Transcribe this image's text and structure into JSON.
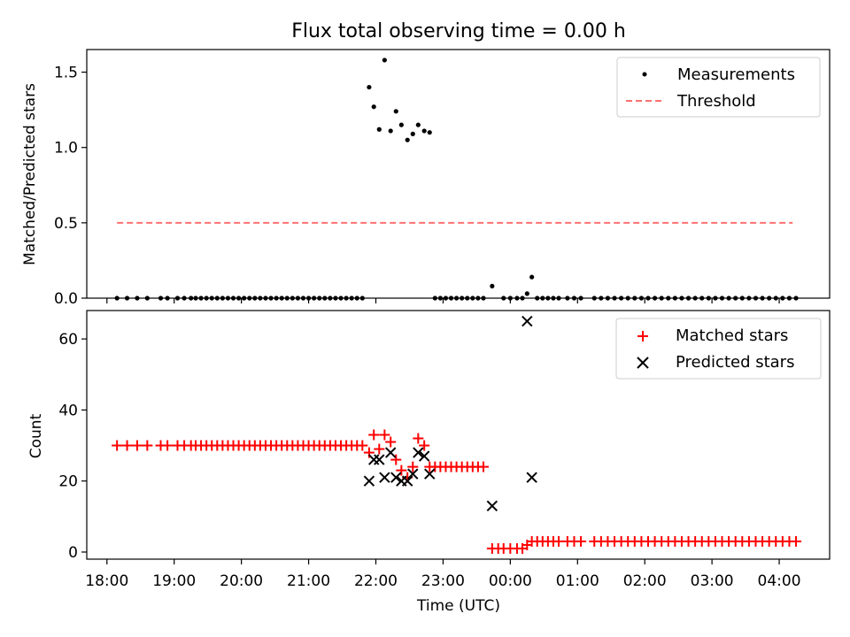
{
  "chart_data": [
    {
      "type": "scatter",
      "title": "Flux total observing time = 0.00 h",
      "ylabel": "Matched/Predicted stars",
      "xlabel": "",
      "ylim": [
        0,
        1.65
      ],
      "xlim_hours": [
        17.7,
        28.75
      ],
      "y_ticks": [
        0.0,
        0.5,
        1.0,
        1.5
      ],
      "y_tick_labels": [
        "0.0",
        "0.5",
        "1.0",
        "1.5"
      ],
      "legend_position": "top-right",
      "series": [
        {
          "name": "Measurements",
          "marker": "dot",
          "color": "#000000",
          "points": [
            [
              18.15,
              0
            ],
            [
              18.3,
              0
            ],
            [
              18.45,
              0
            ],
            [
              18.6,
              0
            ],
            [
              18.8,
              0
            ],
            [
              18.9,
              0
            ],
            [
              19.05,
              0
            ],
            [
              19.15,
              0
            ],
            [
              19.25,
              0
            ],
            [
              19.32,
              0
            ],
            [
              19.4,
              0
            ],
            [
              19.48,
              0
            ],
            [
              19.56,
              0
            ],
            [
              19.64,
              0
            ],
            [
              19.72,
              0
            ],
            [
              19.8,
              0
            ],
            [
              19.88,
              0
            ],
            [
              19.96,
              0
            ],
            [
              20.04,
              0
            ],
            [
              20.12,
              0
            ],
            [
              20.2,
              0
            ],
            [
              20.28,
              0
            ],
            [
              20.36,
              0
            ],
            [
              20.44,
              0
            ],
            [
              20.52,
              0
            ],
            [
              20.6,
              0
            ],
            [
              20.68,
              0
            ],
            [
              20.76,
              0
            ],
            [
              20.84,
              0
            ],
            [
              20.92,
              0
            ],
            [
              21.0,
              0
            ],
            [
              21.08,
              0
            ],
            [
              21.16,
              0
            ],
            [
              21.24,
              0
            ],
            [
              21.32,
              0
            ],
            [
              21.4,
              0
            ],
            [
              21.48,
              0
            ],
            [
              21.56,
              0
            ],
            [
              21.64,
              0
            ],
            [
              21.72,
              0
            ],
            [
              21.8,
              0
            ],
            [
              21.9,
              1.4
            ],
            [
              21.97,
              1.27
            ],
            [
              22.05,
              1.12
            ],
            [
              22.13,
              1.58
            ],
            [
              22.22,
              1.11
            ],
            [
              22.3,
              1.24
            ],
            [
              22.38,
              1.15
            ],
            [
              22.47,
              1.05
            ],
            [
              22.55,
              1.09
            ],
            [
              22.63,
              1.15
            ],
            [
              22.72,
              1.11
            ],
            [
              22.8,
              1.1
            ],
            [
              22.88,
              0
            ],
            [
              22.96,
              0
            ],
            [
              23.04,
              0
            ],
            [
              23.12,
              0
            ],
            [
              23.2,
              0
            ],
            [
              23.28,
              0
            ],
            [
              23.36,
              0
            ],
            [
              23.44,
              0
            ],
            [
              23.52,
              0
            ],
            [
              23.6,
              0
            ],
            [
              23.73,
              0.08
            ],
            [
              23.9,
              0
            ],
            [
              24.0,
              0
            ],
            [
              24.1,
              0
            ],
            [
              24.18,
              0
            ],
            [
              24.25,
              0.03
            ],
            [
              24.32,
              0.14
            ],
            [
              24.4,
              0
            ],
            [
              24.48,
              0
            ],
            [
              24.56,
              0
            ],
            [
              24.64,
              0
            ],
            [
              24.72,
              0
            ],
            [
              24.85,
              0
            ],
            [
              24.95,
              0
            ],
            [
              25.05,
              0
            ],
            [
              25.25,
              0
            ],
            [
              25.35,
              0
            ],
            [
              25.45,
              0
            ],
            [
              25.55,
              0
            ],
            [
              25.65,
              0
            ],
            [
              25.75,
              0
            ],
            [
              25.85,
              0
            ],
            [
              25.95,
              0
            ],
            [
              26.05,
              0
            ],
            [
              26.15,
              0
            ],
            [
              26.25,
              0
            ],
            [
              26.35,
              0
            ],
            [
              26.45,
              0
            ],
            [
              26.55,
              0
            ],
            [
              26.65,
              0
            ],
            [
              26.75,
              0
            ],
            [
              26.85,
              0
            ],
            [
              26.95,
              0
            ],
            [
              27.05,
              0
            ],
            [
              27.15,
              0
            ],
            [
              27.25,
              0
            ],
            [
              27.35,
              0
            ],
            [
              27.45,
              0
            ],
            [
              27.55,
              0
            ],
            [
              27.65,
              0
            ],
            [
              27.75,
              0
            ],
            [
              27.85,
              0
            ],
            [
              27.95,
              0
            ],
            [
              28.05,
              0
            ],
            [
              28.15,
              0
            ],
            [
              28.25,
              0
            ]
          ]
        },
        {
          "name": "Threshold",
          "marker": "dashed-line",
          "color": "#ff7070",
          "x": [
            18.15,
            28.2
          ],
          "y": [
            0.5,
            0.5
          ]
        }
      ]
    },
    {
      "type": "scatter",
      "title": "",
      "ylabel": "Count",
      "xlabel": "Time (UTC)",
      "ylim": [
        -2,
        68
      ],
      "xlim_hours": [
        17.7,
        28.75
      ],
      "y_ticks": [
        0,
        20,
        40,
        60
      ],
      "y_tick_labels": [
        "0",
        "20",
        "40",
        "60"
      ],
      "x_ticks_hours": [
        18,
        19,
        20,
        21,
        22,
        23,
        24,
        25,
        26,
        27,
        28
      ],
      "x_tick_labels": [
        "18:00",
        "19:00",
        "20:00",
        "21:00",
        "22:00",
        "23:00",
        "00:00",
        "01:00",
        "02:00",
        "03:00",
        "04:00"
      ],
      "legend_position": "top-right",
      "series": [
        {
          "name": "Matched stars",
          "marker": "plus",
          "color": "#ff0000",
          "points": [
            [
              18.15,
              30
            ],
            [
              18.3,
              30
            ],
            [
              18.45,
              30
            ],
            [
              18.6,
              30
            ],
            [
              18.8,
              30
            ],
            [
              18.9,
              30
            ],
            [
              19.05,
              30
            ],
            [
              19.15,
              30
            ],
            [
              19.25,
              30
            ],
            [
              19.32,
              30
            ],
            [
              19.4,
              30
            ],
            [
              19.48,
              30
            ],
            [
              19.56,
              30
            ],
            [
              19.64,
              30
            ],
            [
              19.72,
              30
            ],
            [
              19.8,
              30
            ],
            [
              19.88,
              30
            ],
            [
              19.96,
              30
            ],
            [
              20.04,
              30
            ],
            [
              20.12,
              30
            ],
            [
              20.2,
              30
            ],
            [
              20.28,
              30
            ],
            [
              20.36,
              30
            ],
            [
              20.44,
              30
            ],
            [
              20.52,
              30
            ],
            [
              20.6,
              30
            ],
            [
              20.68,
              30
            ],
            [
              20.76,
              30
            ],
            [
              20.84,
              30
            ],
            [
              20.92,
              30
            ],
            [
              21.0,
              30
            ],
            [
              21.08,
              30
            ],
            [
              21.16,
              30
            ],
            [
              21.24,
              30
            ],
            [
              21.32,
              30
            ],
            [
              21.4,
              30
            ],
            [
              21.48,
              30
            ],
            [
              21.56,
              30
            ],
            [
              21.64,
              30
            ],
            [
              21.72,
              30
            ],
            [
              21.8,
              30
            ],
            [
              21.9,
              28
            ],
            [
              21.97,
              33
            ],
            [
              22.05,
              29
            ],
            [
              22.13,
              33
            ],
            [
              22.22,
              31
            ],
            [
              22.3,
              26
            ],
            [
              22.38,
              23
            ],
            [
              22.47,
              21
            ],
            [
              22.55,
              24
            ],
            [
              22.63,
              32
            ],
            [
              22.72,
              30
            ],
            [
              22.8,
              24
            ],
            [
              22.88,
              24
            ],
            [
              22.96,
              24
            ],
            [
              23.04,
              24
            ],
            [
              23.12,
              24
            ],
            [
              23.2,
              24
            ],
            [
              23.28,
              24
            ],
            [
              23.36,
              24
            ],
            [
              23.44,
              24
            ],
            [
              23.52,
              24
            ],
            [
              23.6,
              24
            ],
            [
              23.73,
              1
            ],
            [
              23.82,
              1
            ],
            [
              23.9,
              1
            ],
            [
              24.0,
              1
            ],
            [
              24.1,
              1
            ],
            [
              24.18,
              1
            ],
            [
              24.25,
              2
            ],
            [
              24.32,
              3
            ],
            [
              24.4,
              3
            ],
            [
              24.48,
              3
            ],
            [
              24.56,
              3
            ],
            [
              24.64,
              3
            ],
            [
              24.72,
              3
            ],
            [
              24.85,
              3
            ],
            [
              24.95,
              3
            ],
            [
              25.05,
              3
            ],
            [
              25.25,
              3
            ],
            [
              25.35,
              3
            ],
            [
              25.45,
              3
            ],
            [
              25.55,
              3
            ],
            [
              25.65,
              3
            ],
            [
              25.75,
              3
            ],
            [
              25.85,
              3
            ],
            [
              25.95,
              3
            ],
            [
              26.05,
              3
            ],
            [
              26.15,
              3
            ],
            [
              26.25,
              3
            ],
            [
              26.35,
              3
            ],
            [
              26.45,
              3
            ],
            [
              26.55,
              3
            ],
            [
              26.65,
              3
            ],
            [
              26.75,
              3
            ],
            [
              26.85,
              3
            ],
            [
              26.95,
              3
            ],
            [
              27.05,
              3
            ],
            [
              27.15,
              3
            ],
            [
              27.25,
              3
            ],
            [
              27.35,
              3
            ],
            [
              27.45,
              3
            ],
            [
              27.55,
              3
            ],
            [
              27.65,
              3
            ],
            [
              27.75,
              3
            ],
            [
              27.85,
              3
            ],
            [
              27.95,
              3
            ],
            [
              28.05,
              3
            ],
            [
              28.15,
              3
            ],
            [
              28.25,
              3
            ]
          ]
        },
        {
          "name": "Predicted stars",
          "marker": "x",
          "color": "#000000",
          "points": [
            [
              21.9,
              20
            ],
            [
              21.97,
              26
            ],
            [
              22.05,
              26
            ],
            [
              22.13,
              21
            ],
            [
              22.22,
              28
            ],
            [
              22.3,
              21
            ],
            [
              22.38,
              20
            ],
            [
              22.47,
              20
            ],
            [
              22.55,
              22
            ],
            [
              22.63,
              28
            ],
            [
              22.72,
              27
            ],
            [
              22.8,
              22
            ],
            [
              23.73,
              13
            ],
            [
              24.25,
              65
            ],
            [
              24.32,
              21
            ]
          ]
        }
      ]
    }
  ]
}
